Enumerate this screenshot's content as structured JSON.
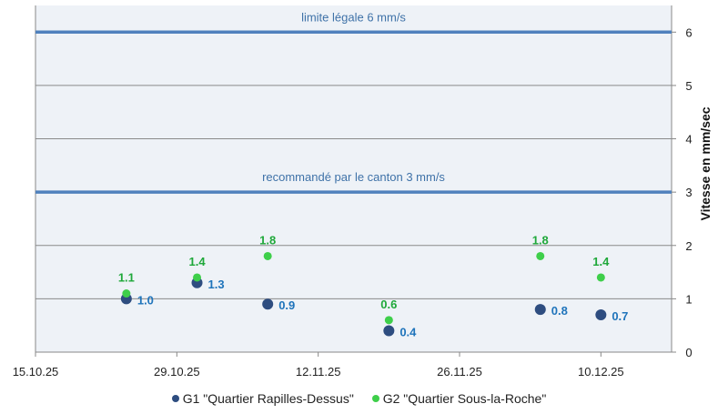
{
  "chart_data": {
    "type": "scatter",
    "title": "",
    "xlabel": "",
    "ylabel": "Vitesse en mm/sec",
    "x_ticks": [
      "15.10.25",
      "29.10.25",
      "12.11.25",
      "26.11.25",
      "10.12.25"
    ],
    "xlim": [
      "15.10.25",
      "17.12.25"
    ],
    "ylim": [
      0,
      6.5
    ],
    "y_ticks": [
      0,
      1,
      2,
      3,
      4,
      5,
      6
    ],
    "y_axis_side": "right",
    "grid": true,
    "legend": "bottom",
    "reference_lines": [
      {
        "value": 6,
        "label": "limite légale 6 mm/s",
        "color": "#4f81bd"
      },
      {
        "value": 3,
        "label": "recommandé par le canton 3 mm/s",
        "color": "#4f81bd"
      }
    ],
    "series": [
      {
        "name": "G1 \"Quartier Rapilles-Dessus\"",
        "color": "#2e4d80",
        "label_color": "#1f74bb",
        "x": [
          "24.10.25",
          "31.10.25",
          "07.11.25",
          "19.11.25",
          "04.12.25",
          "10.12.25"
        ],
        "values": [
          1.0,
          1.3,
          0.9,
          0.4,
          0.8,
          0.7
        ]
      },
      {
        "name": "G2 \"Quartier Sous-la-Roche\"",
        "color": "#3ecf4a",
        "label_color": "#1fa83a",
        "x": [
          "24.10.25",
          "31.10.25",
          "07.11.25",
          "19.11.25",
          "04.12.25",
          "10.12.25"
        ],
        "values": [
          1.1,
          1.4,
          1.8,
          0.6,
          1.8,
          1.4
        ]
      }
    ]
  }
}
